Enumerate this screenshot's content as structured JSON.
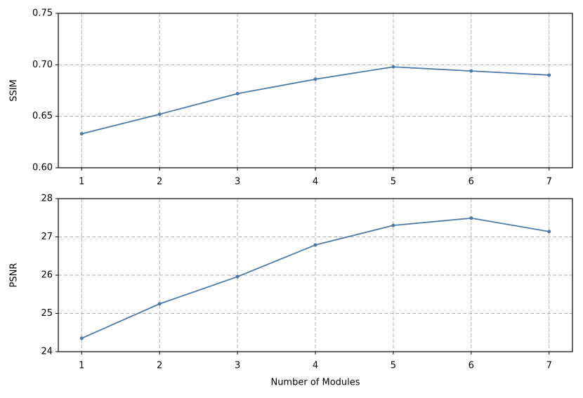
{
  "chart_data": [
    {
      "type": "line",
      "ylabel": "SSIM",
      "x": [
        1,
        2,
        3,
        4,
        5,
        6,
        7
      ],
      "series": [
        {
          "color": "#4a7aa8",
          "values": [
            0.633,
            0.652,
            0.672,
            0.686,
            0.698,
            0.694,
            0.69
          ]
        }
      ],
      "xlim": [
        0.7,
        7.3
      ],
      "xticks": [
        1,
        2,
        3,
        4,
        5,
        6,
        7
      ],
      "ylim": [
        0.6,
        0.75
      ],
      "yticks": [
        {
          "value": 0.6,
          "label": "0.60"
        },
        0.65,
        {
          "value": 0.7,
          "label": "0.70"
        },
        0.75
      ],
      "grid": true
    },
    {
      "type": "line",
      "ylabel": "PSNR",
      "xlabel": "Number of Modules",
      "x": [
        1,
        2,
        3,
        4,
        5,
        6,
        7
      ],
      "series": [
        {
          "color": "#4a7aa8",
          "values": [
            24.35,
            25.25,
            25.96,
            26.79,
            27.3,
            27.49,
            27.14
          ]
        }
      ],
      "xlim": [
        0.7,
        7.3
      ],
      "xticks": [
        1,
        2,
        3,
        4,
        5,
        6,
        7
      ],
      "ylim": [
        24,
        28
      ],
      "yticks": [
        24,
        25,
        26,
        27,
        28
      ],
      "grid": true
    }
  ]
}
